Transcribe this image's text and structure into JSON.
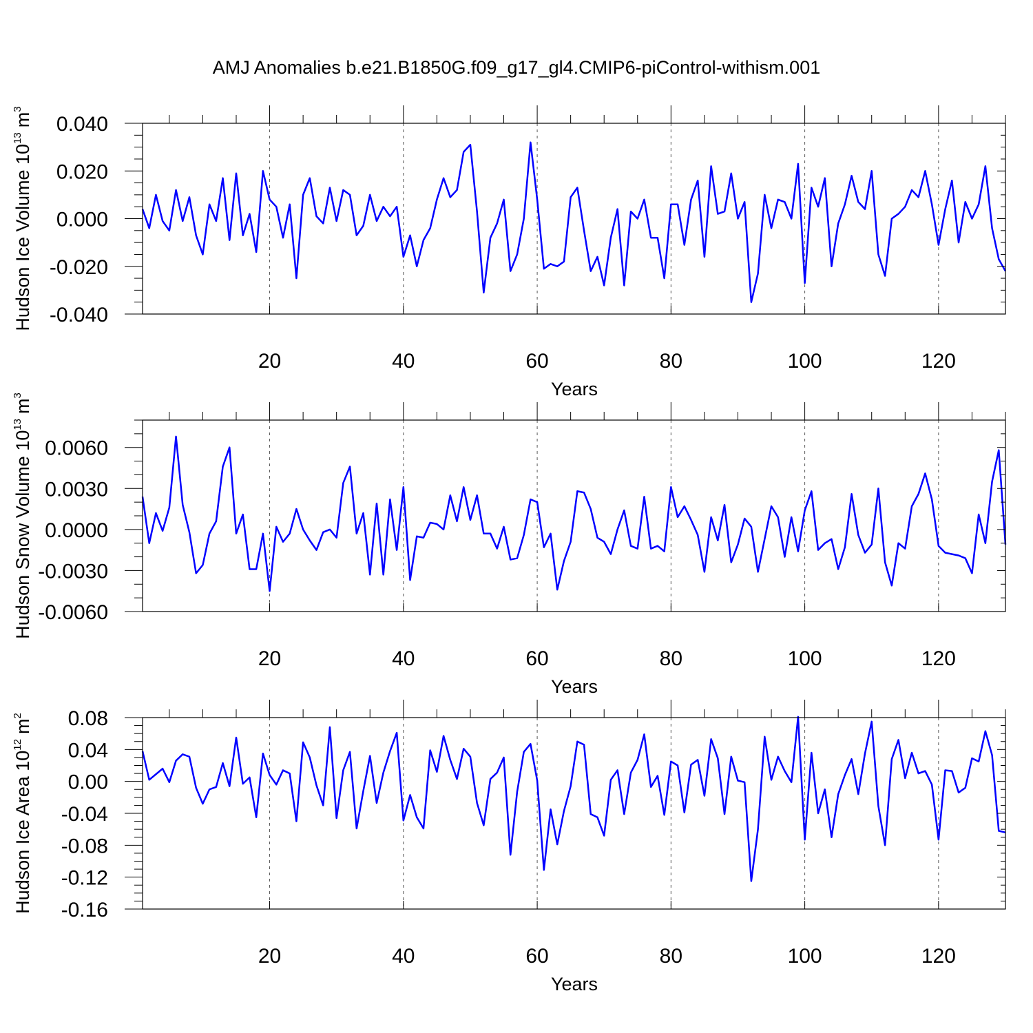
{
  "figure_title": "AMJ Anomalies b.e21.B1850G.f09_g17_gl4.CMIP6-piControl-withism.001",
  "colors": {
    "line": "#0000ff",
    "axis": "#000000",
    "grid": "#555555"
  },
  "chart_data": [
    {
      "type": "line",
      "title": "",
      "xlabel": "Years",
      "ylabel_text": "Hudson Ice Volume 10",
      "ylabel_exp": "13",
      "ylabel_unit": "m",
      "ylabel_unit_exp": "3",
      "xlim": [
        1,
        130
      ],
      "ylim": [
        -0.04,
        0.04
      ],
      "xticks": [
        20,
        40,
        60,
        80,
        100,
        120
      ],
      "xtick_labels": [
        "20",
        "40",
        "60",
        "80",
        "100",
        "120"
      ],
      "yticks": [
        -0.04,
        -0.02,
        0.0,
        0.02,
        0.04
      ],
      "ytick_labels": [
        "-0.040",
        "-0.020",
        "0.000",
        "0.020",
        "0.040"
      ],
      "y_minor_step": 0.005,
      "series": [
        {
          "name": "Hudson Ice Volume",
          "values": [
            0.004,
            -0.004,
            0.01,
            -0.001,
            -0.005,
            0.012,
            -0.001,
            0.009,
            -0.007,
            -0.015,
            0.006,
            -0.001,
            0.017,
            -0.009,
            0.019,
            -0.007,
            0.002,
            -0.014,
            0.02,
            0.008,
            0.005,
            -0.008,
            0.006,
            -0.025,
            0.01,
            0.017,
            0.001,
            -0.002,
            0.013,
            -0.001,
            0.012,
            0.01,
            -0.007,
            -0.003,
            0.01,
            -0.001,
            0.005,
            0.001,
            0.005,
            -0.016,
            -0.007,
            -0.02,
            -0.009,
            -0.004,
            0.008,
            0.017,
            0.009,
            0.012,
            0.028,
            0.031,
            0.003,
            -0.031,
            -0.008,
            -0.002,
            0.008,
            -0.022,
            -0.015,
            0.0,
            0.032,
            0.008,
            -0.021,
            -0.019,
            -0.02,
            -0.018,
            0.009,
            0.013,
            -0.005,
            -0.022,
            -0.016,
            -0.028,
            -0.008,
            0.004,
            -0.028,
            0.003,
            0.0,
            0.008,
            -0.008,
            -0.008,
            -0.025,
            0.006,
            0.006,
            -0.011,
            0.008,
            0.016,
            -0.016,
            0.022,
            0.002,
            0.003,
            0.019,
            0.0,
            0.007,
            -0.035,
            -0.023,
            0.01,
            -0.004,
            0.008,
            0.007,
            0.0,
            0.023,
            -0.027,
            0.013,
            0.005,
            0.017,
            -0.02,
            -0.002,
            0.006,
            0.018,
            0.007,
            0.004,
            0.02,
            -0.015,
            -0.024,
            0.0,
            0.002,
            0.005,
            0.012,
            0.009,
            0.02,
            0.006,
            -0.011,
            0.004,
            0.016,
            -0.01,
            0.007,
            0.0,
            0.006,
            0.022,
            -0.004,
            -0.017,
            -0.022
          ]
        }
      ]
    },
    {
      "type": "line",
      "title": "",
      "xlabel": "Years",
      "ylabel_text": "Hudson Snow Volume 10",
      "ylabel_exp": "13",
      "ylabel_unit": "m",
      "ylabel_unit_exp": "3",
      "xlim": [
        1,
        130
      ],
      "ylim": [
        -0.006,
        0.008
      ],
      "xticks": [
        20,
        40,
        60,
        80,
        100,
        120
      ],
      "xtick_labels": [
        "20",
        "40",
        "60",
        "80",
        "100",
        "120"
      ],
      "yticks": [
        -0.006,
        -0.003,
        0.0,
        0.003,
        0.006
      ],
      "ytick_labels": [
        "-0.0060",
        "-0.0030",
        "0.0000",
        "0.0030",
        "0.0060"
      ],
      "y_minor_step": 0.001,
      "series": [
        {
          "name": "Hudson Snow Volume",
          "values": [
            0.0024,
            -0.001,
            0.0012,
            -0.0001,
            0.0016,
            0.0068,
            0.0018,
            -0.0002,
            -0.0032,
            -0.0026,
            -0.0003,
            0.0006,
            0.0046,
            0.006,
            -0.0003,
            0.0011,
            -0.0029,
            -0.0029,
            -0.0003,
            -0.0045,
            0.0002,
            -0.0009,
            -0.0003,
            0.0015,
            0.0,
            -0.0008,
            -0.0015,
            -0.0002,
            0.0,
            -0.0006,
            0.0034,
            0.0046,
            -0.0003,
            0.0012,
            -0.0033,
            0.0019,
            -0.0033,
            0.0022,
            -0.0015,
            0.0031,
            -0.0037,
            -0.0005,
            -0.0006,
            0.0005,
            0.0004,
            0.0,
            0.0025,
            0.0006,
            0.0031,
            0.0007,
            0.0025,
            -0.0003,
            -0.0003,
            -0.0014,
            0.0002,
            -0.0022,
            -0.0021,
            -0.0004,
            0.0022,
            0.002,
            -0.0013,
            -0.0003,
            -0.0044,
            -0.0023,
            -0.0009,
            0.0028,
            0.0027,
            0.0015,
            -0.0006,
            -0.0009,
            -0.0018,
            0.0,
            0.0014,
            -0.0012,
            -0.0014,
            0.0024,
            -0.0014,
            -0.0012,
            -0.0016,
            0.0031,
            0.0009,
            0.0017,
            0.0007,
            -0.0004,
            -0.0031,
            0.0009,
            -0.0008,
            0.0018,
            -0.0024,
            -0.0011,
            0.0008,
            0.0002,
            -0.0031,
            -0.0007,
            0.0017,
            0.0009,
            -0.002,
            0.0009,
            -0.0016,
            0.0014,
            0.0028,
            -0.0015,
            -0.001,
            -0.0007,
            -0.0029,
            -0.0013,
            0.0026,
            -0.0004,
            -0.0017,
            -0.0011,
            0.003,
            -0.0024,
            -0.0041,
            -0.001,
            -0.0014,
            0.0017,
            0.0026,
            0.0041,
            0.0022,
            -0.0012,
            -0.0017,
            -0.0018,
            -0.0019,
            -0.0021,
            -0.0032,
            0.0011,
            -0.001,
            0.0035,
            0.0058,
            -0.0011
          ]
        }
      ]
    },
    {
      "type": "line",
      "title": "",
      "xlabel": "Years",
      "ylabel_text": "Hudson Ice Area 10",
      "ylabel_exp": "12",
      "ylabel_unit": "m",
      "ylabel_unit_exp": "2",
      "xlim": [
        1,
        130
      ],
      "ylim": [
        -0.16,
        0.08
      ],
      "xticks": [
        20,
        40,
        60,
        80,
        100,
        120
      ],
      "xtick_labels": [
        "20",
        "40",
        "60",
        "80",
        "100",
        "120"
      ],
      "yticks": [
        -0.16,
        -0.12,
        -0.08,
        -0.04,
        0.0,
        0.04,
        0.08
      ],
      "ytick_labels": [
        "-0.16",
        "-0.12",
        "-0.08",
        "-0.04",
        "0.00",
        "0.04",
        "0.08"
      ],
      "y_minor_step": 0.01,
      "series": [
        {
          "name": "Hudson Ice Area",
          "values": [
            0.038,
            0.002,
            0.009,
            0.016,
            -0.001,
            0.026,
            0.034,
            0.031,
            -0.008,
            -0.028,
            -0.01,
            -0.007,
            0.023,
            -0.006,
            0.055,
            -0.003,
            0.005,
            -0.045,
            0.035,
            0.008,
            -0.004,
            0.014,
            0.01,
            -0.05,
            0.049,
            0.03,
            -0.005,
            -0.03,
            0.068,
            -0.046,
            0.014,
            0.037,
            -0.059,
            -0.012,
            0.032,
            -0.027,
            0.011,
            0.038,
            0.061,
            -0.049,
            -0.017,
            -0.045,
            -0.059,
            0.039,
            0.012,
            0.057,
            0.027,
            0.003,
            0.041,
            0.031,
            -0.027,
            -0.055,
            0.003,
            0.011,
            0.03,
            -0.092,
            -0.013,
            0.037,
            0.047,
            0.001,
            -0.111,
            -0.035,
            -0.079,
            -0.037,
            -0.006,
            0.05,
            0.046,
            -0.041,
            -0.045,
            -0.068,
            0.002,
            0.014,
            -0.041,
            0.011,
            0.027,
            0.059,
            -0.007,
            0.007,
            -0.042,
            0.025,
            0.02,
            -0.039,
            0.021,
            0.027,
            -0.018,
            0.053,
            0.029,
            -0.041,
            0.031,
            0.001,
            -0.001,
            -0.125,
            -0.06,
            0.056,
            0.002,
            0.031,
            0.013,
            -0.001,
            0.081,
            -0.073,
            0.036,
            -0.04,
            -0.01,
            -0.07,
            -0.016,
            0.008,
            0.028,
            -0.016,
            0.035,
            0.075,
            -0.031,
            -0.08,
            0.028,
            0.052,
            0.004,
            0.036,
            0.01,
            0.013,
            -0.004,
            -0.073,
            0.014,
            0.013,
            -0.014,
            -0.008,
            0.029,
            0.025,
            0.063,
            0.033,
            -0.062,
            -0.064
          ]
        }
      ]
    }
  ]
}
